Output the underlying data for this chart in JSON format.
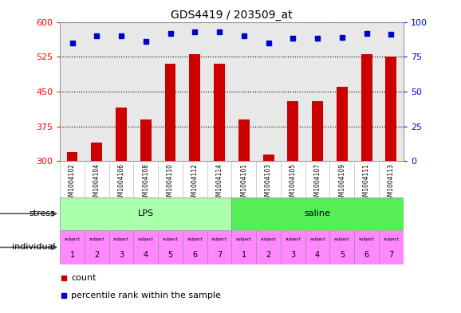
{
  "title": "GDS4419 / 203509_at",
  "samples": [
    "GSM1004102",
    "GSM1004104",
    "GSM1004106",
    "GSM1004108",
    "GSM1004110",
    "GSM1004112",
    "GSM1004114",
    "GSM1004101",
    "GSM1004103",
    "GSM1004105",
    "GSM1004107",
    "GSM1004109",
    "GSM1004111",
    "GSM1004113"
  ],
  "counts": [
    320,
    340,
    415,
    390,
    510,
    530,
    510,
    390,
    315,
    430,
    430,
    460,
    530,
    525
  ],
  "percentiles": [
    85,
    90,
    90,
    86,
    92,
    93,
    93,
    90,
    85,
    88,
    88,
    89,
    92,
    91
  ],
  "ylim_left": [
    300,
    600
  ],
  "ylim_right": [
    0,
    100
  ],
  "yticks_left": [
    300,
    375,
    450,
    525,
    600
  ],
  "yticks_right": [
    0,
    25,
    50,
    75,
    100
  ],
  "bar_color": "#cc0000",
  "dot_color": "#0000cc",
  "stress_lps_color": "#aaffaa",
  "stress_saline_color": "#55ee55",
  "individual_color": "#ff88ff",
  "lps_samples": 7,
  "saline_samples": 7,
  "background_color": "#ffffff",
  "plot_bg_color": "#e8e8e8",
  "sample_bg_color": "#d0d0d0",
  "title_fontsize": 10,
  "tick_fontsize": 8,
  "label_fontsize": 8,
  "sample_label_fontsize": 5.5,
  "legend_fontsize": 8
}
